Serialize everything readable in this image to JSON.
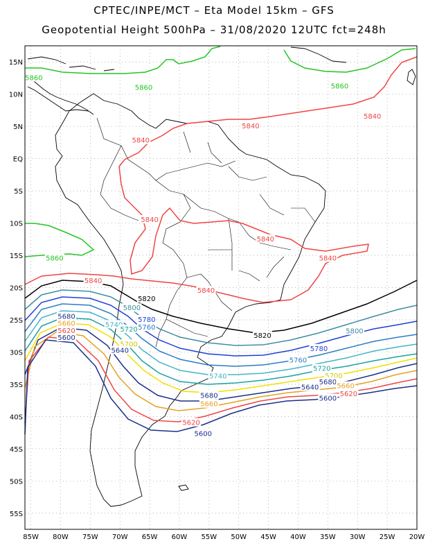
{
  "header": {
    "line1": "CPTEC/INPE/MCT –  Eta Model 15km – GFS",
    "line2": "Geopotential Height 500hPa – 31/08/2020 12UTC fct=248h"
  },
  "axes": {
    "lat_labels": [
      "15N",
      "10N",
      "5N",
      "EQ",
      "5S",
      "10S",
      "15S",
      "20S",
      "25S",
      "30S",
      "35S",
      "40S",
      "45S",
      "50S",
      "55S"
    ],
    "lon_labels": [
      "85W",
      "80W",
      "75W",
      "70W",
      "65W",
      "60W",
      "55W",
      "50W",
      "45W",
      "40W",
      "35W",
      "30W",
      "25W",
      "20W"
    ],
    "lat_range": [
      17.5,
      -57.5
    ],
    "lon_range": [
      -86,
      -20
    ]
  },
  "contour_labels": [
    {
      "text": "5860",
      "color": "#22c522",
      "lon": -84.5,
      "lat": 12.5
    },
    {
      "text": "5860",
      "color": "#22c522",
      "lon": -66,
      "lat": 11
    },
    {
      "text": "5860",
      "color": "#22c522",
      "lon": -33,
      "lat": 11.2
    },
    {
      "text": "5860",
      "color": "#22c522",
      "lon": -81,
      "lat": -15.5
    },
    {
      "text": "5840",
      "color": "#ef4444",
      "lon": -27.5,
      "lat": 6.5
    },
    {
      "text": "5840",
      "color": "#ef4444",
      "lon": -48,
      "lat": 5
    },
    {
      "text": "5840",
      "color": "#ef4444",
      "lon": -66.5,
      "lat": 2.8
    },
    {
      "text": "5840",
      "color": "#ef4444",
      "lon": -65,
      "lat": -9.5
    },
    {
      "text": "5840",
      "color": "#ef4444",
      "lon": -45.5,
      "lat": -12.5
    },
    {
      "text": "5840",
      "color": "#ef4444",
      "lon": -35,
      "lat": -15.5
    },
    {
      "text": "5840",
      "color": "#ef4444",
      "lon": -55.5,
      "lat": -20.5
    },
    {
      "text": "5840",
      "color": "#ef4444",
      "lon": -74.5,
      "lat": -19
    },
    {
      "text": "5820",
      "color": "#000000",
      "lon": -65.5,
      "lat": -21.8
    },
    {
      "text": "5820",
      "color": "#000000",
      "lon": -46,
      "lat": -27.5
    },
    {
      "text": "5800",
      "color": "#3d8ea0",
      "lon": -68,
      "lat": -23.2
    },
    {
      "text": "5800",
      "color": "#3d8ea0",
      "lon": -30.5,
      "lat": -26.8
    },
    {
      "text": "5780",
      "color": "#1e3fd6",
      "lon": -65.5,
      "lat": -25
    },
    {
      "text": "5780",
      "color": "#1e3fd6",
      "lon": -36.5,
      "lat": -29.5
    },
    {
      "text": "5760",
      "color": "#2c7bc7",
      "lon": -65.5,
      "lat": -26.2
    },
    {
      "text": "5760",
      "color": "#2c7bc7",
      "lon": -40,
      "lat": -31.3
    },
    {
      "text": "5740",
      "color": "#45b3c8",
      "lon": -71,
      "lat": -25.8
    },
    {
      "text": "5740",
      "color": "#45b3c8",
      "lon": -53.5,
      "lat": -33.8
    },
    {
      "text": "5720",
      "color": "#1aa1a1",
      "lon": -68.5,
      "lat": -26.5
    },
    {
      "text": "5720",
      "color": "#1aa1a1",
      "lon": -36,
      "lat": -32.6
    },
    {
      "text": "5700",
      "color": "#d4c600",
      "lon": -68.5,
      "lat": -28.8
    },
    {
      "text": "5700",
      "color": "#d4c600",
      "lon": -34,
      "lat": -33.7
    },
    {
      "text": "5680",
      "color": "#1a2f8a",
      "lon": -79,
      "lat": -24.5
    },
    {
      "text": "5680",
      "color": "#1a2f8a",
      "lon": -55,
      "lat": -36.8
    },
    {
      "text": "5680",
      "color": "#1a2f8a",
      "lon": -35,
      "lat": -34.7
    },
    {
      "text": "5660",
      "color": "#e6a020",
      "lon": -79,
      "lat": -25.6
    },
    {
      "text": "5660",
      "color": "#e6a020",
      "lon": -55,
      "lat": -38.1
    },
    {
      "text": "5660",
      "color": "#e6a020",
      "lon": -32,
      "lat": -35.3
    },
    {
      "text": "5640",
      "color": "#1a2f8a",
      "lon": -70,
      "lat": -29.8
    },
    {
      "text": "5640",
      "color": "#1a2f8a",
      "lon": -38,
      "lat": -35.5
    },
    {
      "text": "5620",
      "color": "#ef4444",
      "lon": -79,
      "lat": -26.7
    },
    {
      "text": "5620",
      "color": "#ef4444",
      "lon": -58,
      "lat": -41
    },
    {
      "text": "5620",
      "color": "#ef4444",
      "lon": -31.5,
      "lat": -36.5
    },
    {
      "text": "5600",
      "color": "#1a2f8a",
      "lon": -79,
      "lat": -27.8
    },
    {
      "text": "5600",
      "color": "#1a2f8a",
      "lon": -56,
      "lat": -42.7
    },
    {
      "text": "5600",
      "color": "#1a2f8a",
      "lon": -35,
      "lat": -37.2
    }
  ]
}
